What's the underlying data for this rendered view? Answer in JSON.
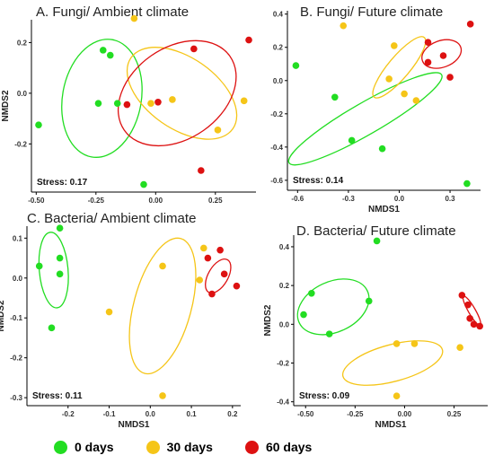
{
  "colors": {
    "day0": "#22dd22",
    "day30": "#f5c518",
    "day60": "#dd1111",
    "axis": "#000000"
  },
  "legend": [
    {
      "label": "0 days",
      "color": "#22dd22"
    },
    {
      "label": "30 days",
      "color": "#f5c518"
    },
    {
      "label": "60 days",
      "color": "#dd1111"
    }
  ],
  "chart_data": [
    {
      "type": "scatter",
      "title": "A. Fungi/ Ambient climate",
      "xlabel": "",
      "ylabel": "NMDS2",
      "xlim": [
        -0.52,
        0.42
      ],
      "ylim": [
        -0.39,
        0.29
      ],
      "xticks": [
        "-0.50",
        "-0.25",
        "0.00",
        "0.25"
      ],
      "xtick_values": [
        -0.5,
        -0.25,
        0.0,
        0.25
      ],
      "yticks": [
        "0.2",
        "0.0",
        "-0.2"
      ],
      "ytick_values": [
        0.2,
        0.0,
        -0.2
      ],
      "stress": "Stress: 0.17",
      "series": [
        {
          "group": "0 days",
          "points": [
            [
              -0.49,
              -0.125
            ],
            [
              -0.22,
              0.17
            ],
            [
              -0.19,
              0.15
            ],
            [
              -0.24,
              -0.04
            ],
            [
              -0.16,
              -0.04
            ],
            [
              -0.05,
              -0.36
            ]
          ]
        },
        {
          "group": "30 days",
          "points": [
            [
              -0.09,
              0.295
            ],
            [
              -0.02,
              -0.04
            ],
            [
              0.07,
              -0.025
            ],
            [
              0.26,
              -0.145
            ],
            [
              0.37,
              -0.03
            ]
          ]
        },
        {
          "group": "60 days",
          "points": [
            [
              -0.12,
              -0.045
            ],
            [
              0.01,
              -0.035
            ],
            [
              0.16,
              0.175
            ],
            [
              0.19,
              -0.305
            ],
            [
              0.39,
              0.21
            ]
          ]
        }
      ],
      "ellipses": [
        {
          "group": "0 days",
          "cx": -0.225,
          "cy": -0.02,
          "rx": 0.165,
          "ry": 0.235,
          "angle": -10
        },
        {
          "group": "30 days",
          "cx": 0.11,
          "cy": 0.0,
          "rx": 0.26,
          "ry": 0.14,
          "angle": -35
        },
        {
          "group": "60 days",
          "cx": 0.09,
          "cy": 0.0,
          "rx": 0.27,
          "ry": 0.18,
          "angle": 35
        }
      ]
    },
    {
      "type": "scatter",
      "title": "B. Fungi/ Future climate",
      "xlabel": "NMDS1",
      "ylabel": "",
      "xlim": [
        -0.66,
        0.48
      ],
      "ylim": [
        -0.66,
        0.42
      ],
      "xticks": [
        "-0.6",
        "-0.3",
        "0.0",
        "0.3"
      ],
      "xtick_values": [
        -0.6,
        -0.3,
        0.0,
        0.3
      ],
      "yticks": [
        "0.4",
        "0.2",
        "0.0",
        "-0.2",
        "-0.4",
        "-0.6"
      ],
      "ytick_values": [
        0.4,
        0.2,
        0.0,
        -0.2,
        -0.4,
        -0.6
      ],
      "stress": "Stress: 0.14",
      "series": [
        {
          "group": "0 days",
          "points": [
            [
              -0.61,
              0.09
            ],
            [
              -0.38,
              -0.1
            ],
            [
              -0.28,
              -0.36
            ],
            [
              -0.1,
              -0.41
            ],
            [
              0.4,
              -0.62
            ]
          ]
        },
        {
          "group": "30 days",
          "points": [
            [
              -0.33,
              0.33
            ],
            [
              -0.03,
              0.21
            ],
            [
              -0.06,
              0.01
            ],
            [
              0.03,
              -0.08
            ],
            [
              0.1,
              -0.12
            ]
          ]
        },
        {
          "group": "60 days",
          "points": [
            [
              0.17,
              0.23
            ],
            [
              0.26,
              0.15
            ],
            [
              0.17,
              0.11
            ],
            [
              0.3,
              0.02
            ],
            [
              0.42,
              0.34
            ]
          ]
        }
      ],
      "ellipses": [
        {
          "group": "0 days",
          "cx": -0.2,
          "cy": -0.23,
          "rx": 0.52,
          "ry": 0.095,
          "angle": 30
        },
        {
          "group": "30 days",
          "cx": 0.0,
          "cy": 0.08,
          "rx": 0.23,
          "ry": 0.065,
          "angle": 50
        },
        {
          "group": "60 days",
          "cx": 0.25,
          "cy": 0.16,
          "rx": 0.12,
          "ry": 0.08,
          "angle": 20
        }
      ]
    },
    {
      "type": "scatter",
      "title": "C. Bacteria/ Ambient climate",
      "xlabel": "NMDS1",
      "ylabel": "NMDS2",
      "xlim": [
        -0.3,
        0.22
      ],
      "ylim": [
        -0.32,
        0.13
      ],
      "xticks": [
        "-0.2",
        "-0.1",
        "0.0",
        "0.1",
        "0.2"
      ],
      "xtick_values": [
        -0.2,
        -0.1,
        0.0,
        0.1,
        0.2
      ],
      "yticks": [
        "0.1",
        "0.0",
        "-0.1",
        "-0.2",
        "-0.3"
      ],
      "ytick_values": [
        0.1,
        0.0,
        -0.1,
        -0.2,
        -0.3
      ],
      "stress": "Stress: 0.11",
      "series": [
        {
          "group": "0 days",
          "points": [
            [
              -0.27,
              0.03
            ],
            [
              -0.22,
              0.125
            ],
            [
              -0.22,
              0.05
            ],
            [
              -0.22,
              0.01
            ],
            [
              -0.24,
              -0.125
            ]
          ]
        },
        {
          "group": "30 days",
          "points": [
            [
              -0.1,
              -0.085
            ],
            [
              0.03,
              0.03
            ],
            [
              0.13,
              0.075
            ],
            [
              0.12,
              -0.005
            ],
            [
              0.03,
              -0.295
            ]
          ]
        },
        {
          "group": "60 days",
          "points": [
            [
              0.14,
              0.05
            ],
            [
              0.17,
              0.07
            ],
            [
              0.18,
              0.01
            ],
            [
              0.15,
              -0.04
            ],
            [
              0.21,
              -0.02
            ]
          ]
        }
      ],
      "ellipses": [
        {
          "group": "0 days",
          "cx": -0.235,
          "cy": 0.02,
          "rx": 0.035,
          "ry": 0.095,
          "angle": 5
        },
        {
          "group": "30 days",
          "cx": 0.03,
          "cy": -0.07,
          "rx": 0.07,
          "ry": 0.175,
          "angle": -15
        },
        {
          "group": "60 days",
          "cx": 0.165,
          "cy": 0.005,
          "rx": 0.024,
          "ry": 0.047,
          "angle": -30
        }
      ]
    },
    {
      "type": "scatter",
      "title": "D. Bacteria/ Future climate",
      "xlabel": "NMDS1",
      "ylabel": "NMDS2",
      "xlim": [
        -0.56,
        0.42
      ],
      "ylim": [
        -0.42,
        0.46
      ],
      "xticks": [
        "-0.50",
        "-0.25",
        "0.00",
        "0.25"
      ],
      "xtick_values": [
        -0.5,
        -0.25,
        0.0,
        0.25
      ],
      "yticks": [
        "0.4",
        "0.2",
        "0.0",
        "-0.2",
        "-0.4"
      ],
      "ytick_values": [
        0.4,
        0.2,
        0.0,
        -0.2,
        -0.4
      ],
      "stress": "Stress: 0.09",
      "series": [
        {
          "group": "0 days",
          "points": [
            [
              -0.51,
              0.05
            ],
            [
              -0.47,
              0.16
            ],
            [
              -0.38,
              -0.05
            ],
            [
              -0.18,
              0.12
            ],
            [
              -0.14,
              0.43
            ]
          ]
        },
        {
          "group": "30 days",
          "points": [
            [
              -0.04,
              -0.1
            ],
            [
              0.05,
              -0.1
            ],
            [
              0.28,
              -0.12
            ],
            [
              -0.04,
              -0.37
            ]
          ]
        },
        {
          "group": "60 days",
          "points": [
            [
              0.29,
              0.15
            ],
            [
              0.32,
              0.1
            ],
            [
              0.33,
              0.03
            ],
            [
              0.35,
              0.0
            ],
            [
              0.38,
              -0.01
            ]
          ]
        }
      ],
      "ellipses": [
        {
          "group": "0 days",
          "cx": -0.36,
          "cy": 0.09,
          "rx": 0.19,
          "ry": 0.13,
          "angle": 25
        },
        {
          "group": "30 days",
          "cx": -0.06,
          "cy": -0.2,
          "rx": 0.26,
          "ry": 0.095,
          "angle": 15
        },
        {
          "group": "60 days",
          "cx": 0.34,
          "cy": 0.07,
          "rx": 0.085,
          "ry": 0.018,
          "angle": -60
        }
      ]
    }
  ]
}
